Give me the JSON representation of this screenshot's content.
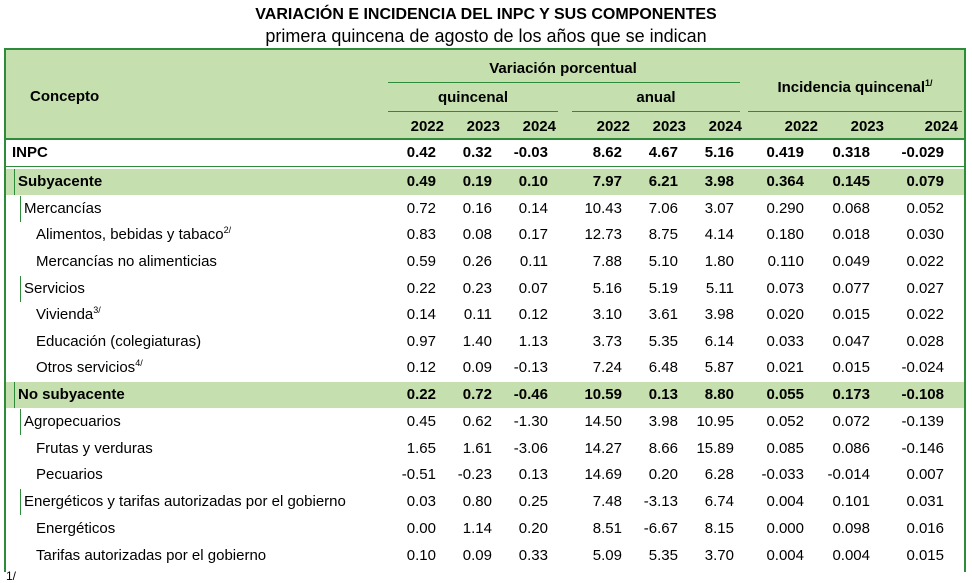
{
  "title": "VARIACIÓN E INCIDENCIA DEL INPC Y SUS COMPONENTES",
  "subtitle": "primera quincena de agosto de los años que se indican",
  "header": {
    "concepto": "Concepto",
    "variacion": "Variación porcentual",
    "quincenal": "quincenal",
    "anual": "anual",
    "incidencia": "Incidencia quincenal",
    "incidencia_sup": "1/",
    "years": [
      "2022",
      "2023",
      "2024",
      "2022",
      "2023",
      "2024",
      "2022",
      "2023",
      "2024"
    ]
  },
  "rows": [
    {
      "label": "INPC",
      "sup": "",
      "values": [
        "0.42",
        "0.32",
        "-0.03",
        "8.62",
        "4.67",
        "5.16",
        "0.419",
        "0.318",
        "-0.029"
      ]
    },
    {
      "label": "Subyacente",
      "sup": "",
      "values": [
        "0.49",
        "0.19",
        "0.10",
        "7.97",
        "6.21",
        "3.98",
        "0.364",
        "0.145",
        "0.079"
      ]
    },
    {
      "label": "Mercancías",
      "sup": "",
      "values": [
        "0.72",
        "0.16",
        "0.14",
        "10.43",
        "7.06",
        "3.07",
        "0.290",
        "0.068",
        "0.052"
      ]
    },
    {
      "label": "Alimentos, bebidas y tabaco",
      "sup": "2/",
      "values": [
        "0.83",
        "0.08",
        "0.17",
        "12.73",
        "8.75",
        "4.14",
        "0.180",
        "0.018",
        "0.030"
      ]
    },
    {
      "label": "Mercancías no alimenticias",
      "sup": "",
      "values": [
        "0.59",
        "0.26",
        "0.11",
        "7.88",
        "5.10",
        "1.80",
        "0.110",
        "0.049",
        "0.022"
      ]
    },
    {
      "label": "Servicios",
      "sup": "",
      "values": [
        "0.22",
        "0.23",
        "0.07",
        "5.16",
        "5.19",
        "5.11",
        "0.073",
        "0.077",
        "0.027"
      ]
    },
    {
      "label": "Vivienda",
      "sup": "3/",
      "values": [
        "0.14",
        "0.11",
        "0.12",
        "3.10",
        "3.61",
        "3.98",
        "0.020",
        "0.015",
        "0.022"
      ]
    },
    {
      "label": "Educación (colegiaturas)",
      "sup": "",
      "values": [
        "0.97",
        "1.40",
        "1.13",
        "3.73",
        "5.35",
        "6.14",
        "0.033",
        "0.047",
        "0.028"
      ]
    },
    {
      "label": "Otros servicios",
      "sup": "4/",
      "values": [
        "0.12",
        "0.09",
        "-0.13",
        "7.24",
        "6.48",
        "5.87",
        "0.021",
        "0.015",
        "-0.024"
      ]
    },
    {
      "label": "No subyacente",
      "sup": "",
      "values": [
        "0.22",
        "0.72",
        "-0.46",
        "10.59",
        "0.13",
        "8.80",
        "0.055",
        "0.173",
        "-0.108"
      ]
    },
    {
      "label": "Agropecuarios",
      "sup": "",
      "values": [
        "0.45",
        "0.62",
        "-1.30",
        "14.50",
        "3.98",
        "10.95",
        "0.052",
        "0.072",
        "-0.139"
      ]
    },
    {
      "label": "Frutas y verduras",
      "sup": "",
      "values": [
        "1.65",
        "1.61",
        "-3.06",
        "14.27",
        "8.66",
        "15.89",
        "0.085",
        "0.086",
        "-0.146"
      ]
    },
    {
      "label": "Pecuarios",
      "sup": "",
      "values": [
        "-0.51",
        "-0.23",
        "0.13",
        "14.69",
        "0.20",
        "6.28",
        "-0.033",
        "-0.014",
        "0.007"
      ]
    },
    {
      "label": "Energéticos y tarifas autorizadas por el gobierno",
      "sup": "",
      "values": [
        "0.03",
        "0.80",
        "0.25",
        "7.48",
        "-3.13",
        "6.74",
        "0.004",
        "0.101",
        "0.031"
      ]
    },
    {
      "label": "Energéticos",
      "sup": "",
      "values": [
        "0.00",
        "1.14",
        "0.20",
        "8.51",
        "-6.67",
        "8.15",
        "0.000",
        "0.098",
        "0.016"
      ]
    },
    {
      "label": "Tarifas autorizadas por el gobierno",
      "sup": "",
      "values": [
        "0.10",
        "0.09",
        "0.33",
        "5.09",
        "5.35",
        "3.70",
        "0.004",
        "0.004",
        "0.015"
      ]
    }
  ],
  "footnote": "1/"
}
